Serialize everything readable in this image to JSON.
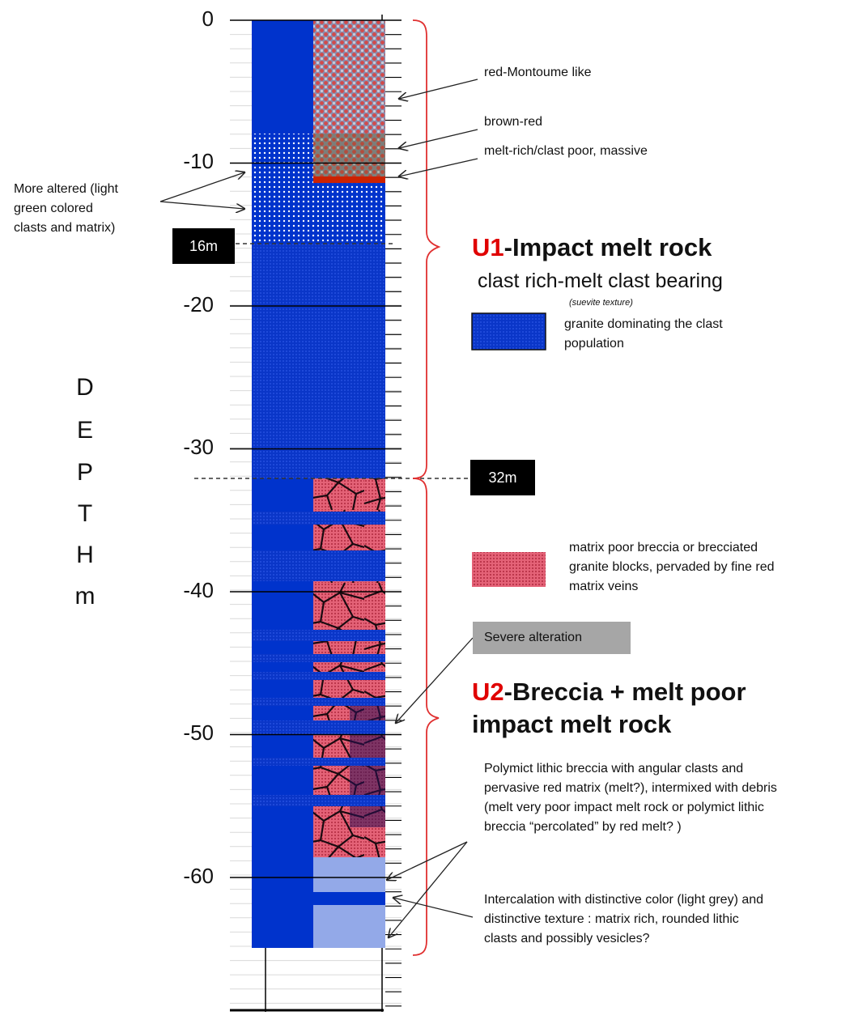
{
  "depth_axis": {
    "ticks": [
      "0",
      "-10",
      "-20",
      "-30",
      "-40",
      "-50",
      "-60"
    ],
    "label_letters": [
      "D",
      "E",
      "P",
      "T",
      "H",
      "m"
    ]
  },
  "markers": {
    "m16": "16m",
    "m32": "32m"
  },
  "left_note": {
    "lines": [
      "More altered (light",
      "green colored",
      "clasts and matrix)"
    ]
  },
  "annotations": {
    "red_montoume": "red-Montoume like",
    "brown_red": "brown-red",
    "melt_rich": "melt-rich/clast poor, massive",
    "severe_alteration": "Severe alteration"
  },
  "unit1": {
    "code": "U1",
    "title": "-Impact melt rock",
    "subtitle": "clast rich-melt clast bearing",
    "tiny_note": "(suevite texture)",
    "legend_lines": [
      "granite dominating the clast",
      "population"
    ]
  },
  "unit2": {
    "code": "U2",
    "title_line1": "-Breccia + melt poor",
    "title_line2": "impact melt rock",
    "legend_lines": [
      "matrix poor breccia or brecciated",
      "granite blocks, pervaded by fine red",
      "matrix veins"
    ],
    "breccia_lines": [
      "Polymict lithic breccia with angular clasts and",
      "pervasive red matrix (melt?), intermixed with debris",
      "(melt very poor impact melt rock or polymict lithic",
      "breccia “percolated” by red melt? )"
    ],
    "intercalation_lines": [
      "Intercalation with distinctive color (light grey) and",
      "distinctive texture : matrix rich, rounded lithic",
      "clasts and possibly vesicles?"
    ]
  },
  "colors": {
    "granite_blue": "#0033cc",
    "light_blue": "#93a9e8",
    "breccia_red": "#e05a6e",
    "bracket_red": "#e03030",
    "red_band": "#cc2200"
  }
}
